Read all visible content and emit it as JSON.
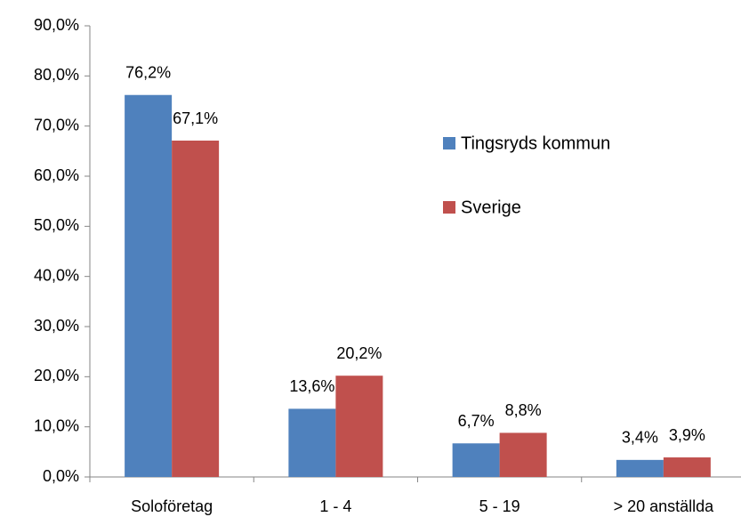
{
  "chart_data": {
    "type": "bar",
    "categories": [
      "Soloföretag",
      "1 - 4",
      "5 - 19",
      "> 20 anställda"
    ],
    "series": [
      {
        "name": "Tingsryds kommun",
        "color": "#4f81bd",
        "values": [
          76.2,
          13.6,
          6.7,
          3.4
        ],
        "value_labels": [
          "76,2%",
          "13,6%",
          "6,7%",
          "3,4%"
        ]
      },
      {
        "name": "Sverige",
        "color": "#c0504d",
        "values": [
          67.1,
          20.2,
          8.8,
          3.9
        ],
        "value_labels": [
          "67,1%",
          "20,2%",
          "8,8%",
          "3,9%"
        ]
      }
    ],
    "ylim": [
      0,
      90
    ],
    "yticks": [
      {
        "value": 0,
        "label": "0,0%"
      },
      {
        "value": 10,
        "label": "10,0%"
      },
      {
        "value": 20,
        "label": "20,0%"
      },
      {
        "value": 30,
        "label": "30,0%"
      },
      {
        "value": 40,
        "label": "40,0%"
      },
      {
        "value": 50,
        "label": "50,0%"
      },
      {
        "value": 60,
        "label": "60,0%"
      },
      {
        "value": 70,
        "label": "70,0%"
      },
      {
        "value": 80,
        "label": "80,0%"
      },
      {
        "value": 90,
        "label": "90,0%"
      }
    ],
    "grid": false,
    "legend": "right"
  }
}
